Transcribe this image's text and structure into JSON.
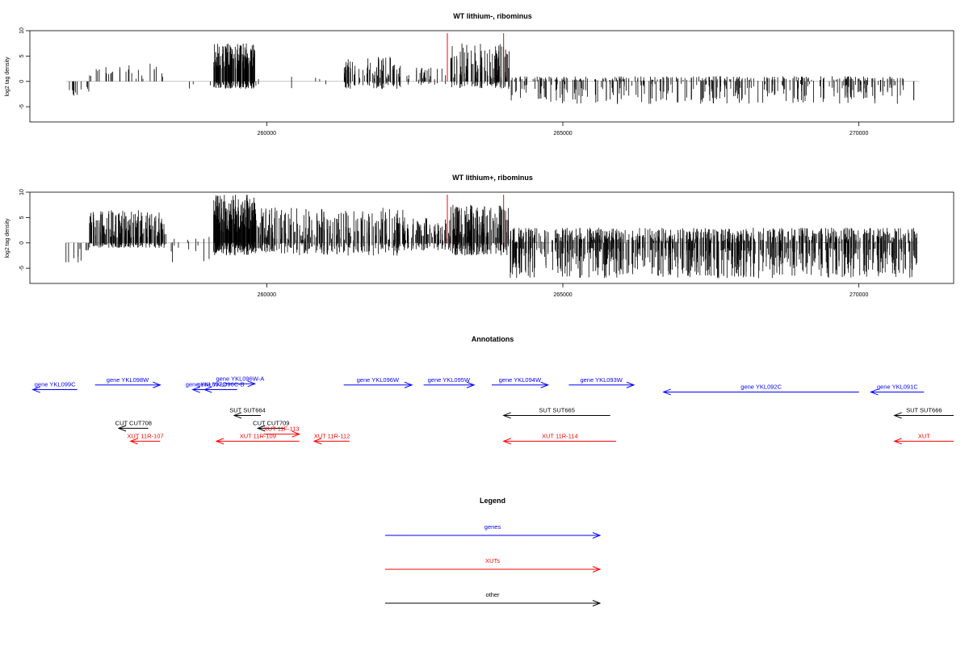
{
  "colors": {
    "gene": "#0000ff",
    "xut": "#ff0000",
    "other": "#000000",
    "bar": "#000000",
    "marker": "#ff0000",
    "baseline": "#b4b4b4"
  },
  "chart_data": [
    {
      "type": "bar",
      "title": "WT lithium-, ribominus",
      "ylabel": "log2 tag density",
      "xlim": [
        256000,
        271600
      ],
      "ylim": [
        -8,
        10
      ],
      "x_ticks": [
        260000,
        265000,
        270000
      ],
      "y_ticks": [
        -5,
        0,
        5,
        10
      ],
      "markers": [
        263050,
        264000
      ],
      "marker_height": 9.5,
      "density_segments": [
        {
          "x": [
            256600,
            256800
          ],
          "pos": 0,
          "neg": [
            -1.5,
            -3.5
          ],
          "n": 10
        },
        {
          "x": [
            256800,
            257000
          ],
          "pos": 0,
          "neg": [
            -1,
            -2.5
          ],
          "n": 4
        },
        {
          "x": [
            257000,
            258300
          ],
          "pos": [
            0.5,
            3.5
          ],
          "neg": 0,
          "n": 28
        },
        {
          "x": [
            258300,
            259100
          ],
          "pos": 0,
          "neg": [
            -0.5,
            -2.5
          ],
          "n": 4
        },
        {
          "x": [
            259100,
            259800
          ],
          "pos": [
            2.5,
            7.5
          ],
          "neg": [
            0,
            -1.5
          ],
          "n": 150
        },
        {
          "x": [
            259800,
            261300
          ],
          "pos": [
            0,
            1
          ],
          "neg": [
            -0.5,
            -1.5
          ],
          "n": 6
        },
        {
          "x": [
            261300,
            262300
          ],
          "pos": [
            0.5,
            5
          ],
          "neg": [
            0,
            -1.5
          ],
          "n": 80
        },
        {
          "x": [
            262300,
            263100
          ],
          "pos": [
            0.3,
            2.8
          ],
          "neg": [
            0,
            -0.8
          ],
          "n": 25
        },
        {
          "x": [
            263100,
            264100
          ],
          "pos": [
            0.5,
            7.5
          ],
          "neg": [
            0,
            -1.5
          ],
          "n": 90
        },
        {
          "x": [
            264100,
            271000
          ],
          "pos": [
            0,
            1
          ],
          "neg": [
            -0.5,
            -4.5
          ],
          "n": 320
        }
      ]
    },
    {
      "type": "bar",
      "title": "WT lithium+, ribominus",
      "ylabel": "log2 tag density",
      "xlim": [
        256000,
        271600
      ],
      "ylim": [
        -8,
        10
      ],
      "x_ticks": [
        260000,
        265000,
        270000
      ],
      "y_ticks": [
        -5,
        0,
        5,
        10
      ],
      "markers": [
        263050,
        264000
      ],
      "marker_height": 9.5,
      "density_segments": [
        {
          "x": [
            256600,
            257000
          ],
          "pos": 0,
          "neg": [
            -1,
            -4
          ],
          "n": 14
        },
        {
          "x": [
            257000,
            258300
          ],
          "pos": [
            1,
            6.5
          ],
          "neg": [
            0,
            -1
          ],
          "n": 160
        },
        {
          "x": [
            258300,
            259100
          ],
          "pos": [
            0,
            1.2
          ],
          "neg": [
            -0.5,
            -4
          ],
          "n": 10
        },
        {
          "x": [
            259100,
            259800
          ],
          "pos": [
            2,
            9.5
          ],
          "neg": [
            0,
            -2.5
          ],
          "n": 170
        },
        {
          "x": [
            259800,
            262300
          ],
          "pos": [
            0.5,
            7
          ],
          "neg": [
            0,
            -2.5
          ],
          "n": 220
        },
        {
          "x": [
            262300,
            263100
          ],
          "pos": [
            0.5,
            5
          ],
          "neg": [
            0,
            -1.5
          ],
          "n": 80
        },
        {
          "x": [
            263100,
            264100
          ],
          "pos": [
            1,
            7.5
          ],
          "neg": [
            0,
            -2.5
          ],
          "n": 150
        },
        {
          "x": [
            264100,
            271000
          ],
          "pos": [
            0,
            3
          ],
          "neg": [
            -1,
            -7
          ],
          "n": 700
        }
      ]
    }
  ],
  "annotations": {
    "title": "Annotations",
    "features": [
      {
        "label": "gene YKL099C",
        "type": "gene",
        "start": 256050,
        "end": 256800,
        "row": 0.95,
        "dir": "left"
      },
      {
        "label": "gene YKL098W",
        "type": "gene",
        "start": 257100,
        "end": 258200,
        "row": 0.75,
        "dir": "right"
      },
      {
        "label": "gene YKL097C",
        "type": "gene",
        "start": 258750,
        "end": 259200,
        "row": 0.95,
        "dir": "left"
      },
      {
        "label": "gene YKL096W-A",
        "type": "gene",
        "start": 259300,
        "end": 259800,
        "row": 0.7,
        "dir": "right"
      },
      {
        "label": "gene YKL096C-B",
        "type": "gene",
        "start": 258950,
        "end": 259500,
        "row": 0.95,
        "dir": "left"
      },
      {
        "label": "gene YKL096W",
        "type": "gene",
        "start": 261300,
        "end": 262450,
        "row": 0.75,
        "dir": "right"
      },
      {
        "label": "gene YKL095W",
        "type": "gene",
        "start": 262650,
        "end": 263500,
        "row": 0.75,
        "dir": "right"
      },
      {
        "label": "gene YKL094W",
        "type": "gene",
        "start": 263800,
        "end": 264750,
        "row": 0.75,
        "dir": "right"
      },
      {
        "label": "gene YKL093W",
        "type": "gene",
        "start": 265100,
        "end": 266200,
        "row": 0.75,
        "dir": "right"
      },
      {
        "label": "gene YKL092C",
        "type": "gene",
        "start": 266700,
        "end": 270000,
        "row": 1.05,
        "dir": "left"
      },
      {
        "label": "gene YKL091C",
        "type": "gene",
        "start": 270200,
        "end": 271100,
        "row": 1.05,
        "dir": "left"
      },
      {
        "label": "SUT SUT664",
        "type": "other",
        "start": 259450,
        "end": 259900,
        "row": 2.05,
        "dir": "left"
      },
      {
        "label": "SUT SUT665",
        "type": "other",
        "start": 264000,
        "end": 265800,
        "row": 2.05,
        "dir": "left"
      },
      {
        "label": "SUT SUT666",
        "type": "other",
        "start": 270600,
        "end": 271600,
        "row": 2.05,
        "dir": "left"
      },
      {
        "label": "CUT CUT708",
        "type": "other",
        "start": 257500,
        "end": 258000,
        "row": 2.6,
        "dir": "left"
      },
      {
        "label": "CUT CUT709",
        "type": "other",
        "start": 259850,
        "end": 260300,
        "row": 2.6,
        "dir": "left"
      },
      {
        "label": "XUT 11F-113",
        "type": "xut",
        "start": 259950,
        "end": 260550,
        "row": 2.85,
        "dir": "right"
      },
      {
        "label": "XUT 11R-107",
        "type": "xut",
        "start": 257700,
        "end": 258200,
        "row": 3.15,
        "dir": "left"
      },
      {
        "label": "XUT 11R-109",
        "type": "xut",
        "start": 259150,
        "end": 260550,
        "row": 3.15,
        "dir": "left"
      },
      {
        "label": "XUT 11R-112",
        "type": "xut",
        "start": 260800,
        "end": 261400,
        "row": 3.15,
        "dir": "left"
      },
      {
        "label": "XUT 11R-114",
        "type": "xut",
        "start": 264000,
        "end": 265900,
        "row": 3.15,
        "dir": "left"
      },
      {
        "label": "XUT",
        "type": "xut",
        "start": 270600,
        "end": 271600,
        "row": 3.15,
        "dir": "left"
      }
    ]
  },
  "legend": {
    "title": "Legend",
    "entries": [
      {
        "label": "genes",
        "type": "gene"
      },
      {
        "label": "XUTs",
        "type": "xut"
      },
      {
        "label": "other",
        "type": "other"
      }
    ]
  }
}
